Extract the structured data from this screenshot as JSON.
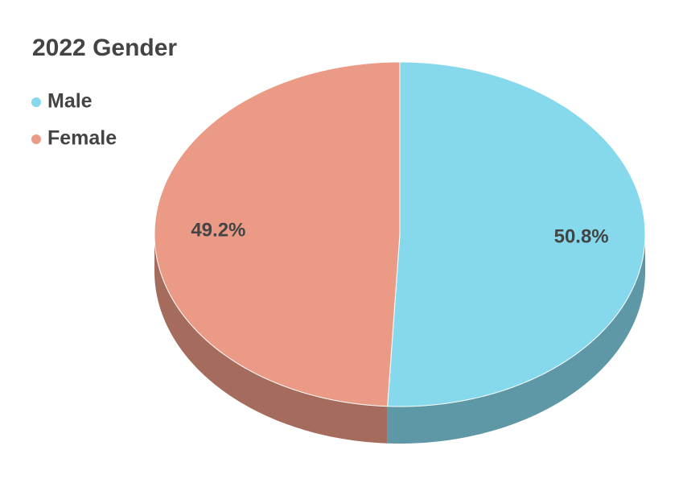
{
  "chart_data": {
    "type": "pie",
    "title": "2022 Gender",
    "categories": [
      "Male",
      "Female"
    ],
    "values": [
      50.8,
      49.2
    ],
    "value_labels": [
      "50.8%",
      "49.2%"
    ],
    "colors": [
      "#86d8ec",
      "#eb9a86"
    ]
  }
}
